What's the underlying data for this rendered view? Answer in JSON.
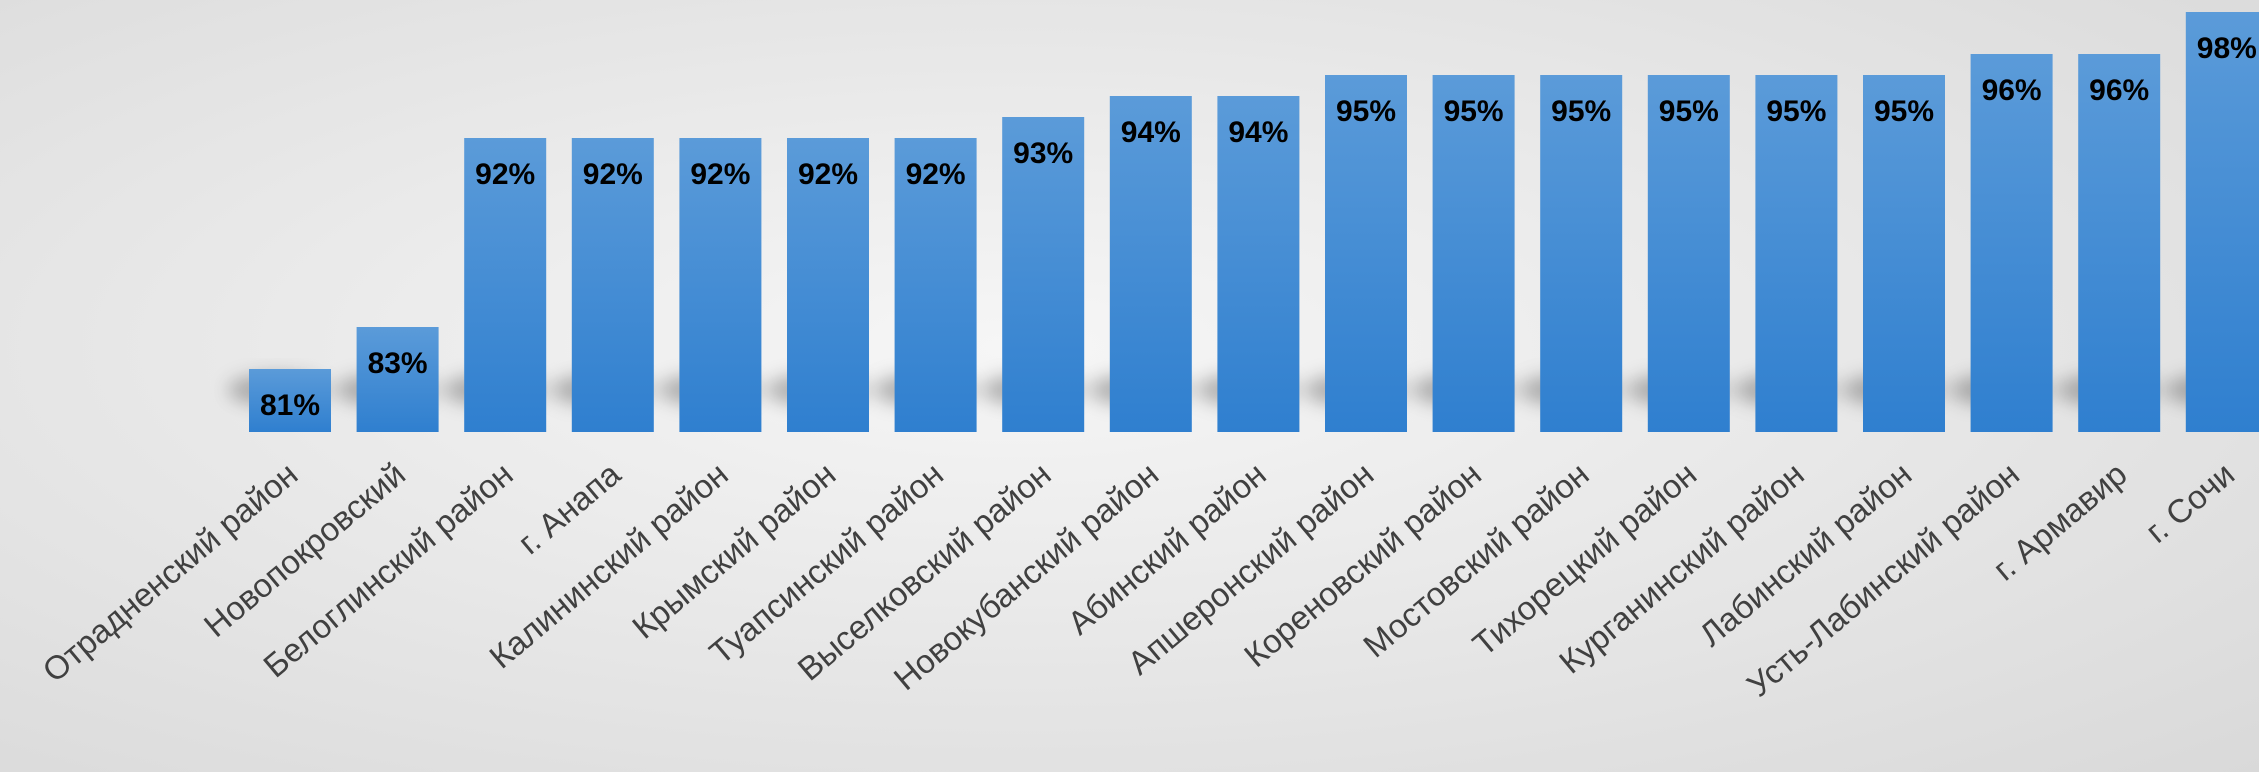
{
  "chart_data": {
    "type": "bar",
    "title": "",
    "xlabel": "",
    "ylabel": "",
    "ylim": [
      78,
      98
    ],
    "grid": false,
    "legend": "none",
    "bar_color": "#4a90d9",
    "categories": [
      "Отрадненский район",
      "Новопокровский",
      "Белоглинский район",
      "г. Анапа",
      "Калининский район",
      "Крымский район",
      "Туапсинский район",
      "Выселковский район",
      "Новокубанский район",
      "Абинский район",
      "Апшеронский район",
      "Кореновский район",
      "Мостовский район",
      "Тихорецкий район",
      "Курганинский район",
      "Лабинский район",
      "Усть-Лабинский район",
      "г. Армавир",
      "г. Сочи"
    ],
    "values": [
      81,
      83,
      92,
      92,
      92,
      92,
      92,
      93,
      94,
      94,
      95,
      95,
      95,
      95,
      95,
      95,
      96,
      96,
      98
    ],
    "value_labels": [
      "81%",
      "83%",
      "92%",
      "92%",
      "92%",
      "92%",
      "92%",
      "93%",
      "94%",
      "94%",
      "95%",
      "95%",
      "95%",
      "95%",
      "95%",
      "95%",
      "96%",
      "96%",
      "98%"
    ]
  }
}
